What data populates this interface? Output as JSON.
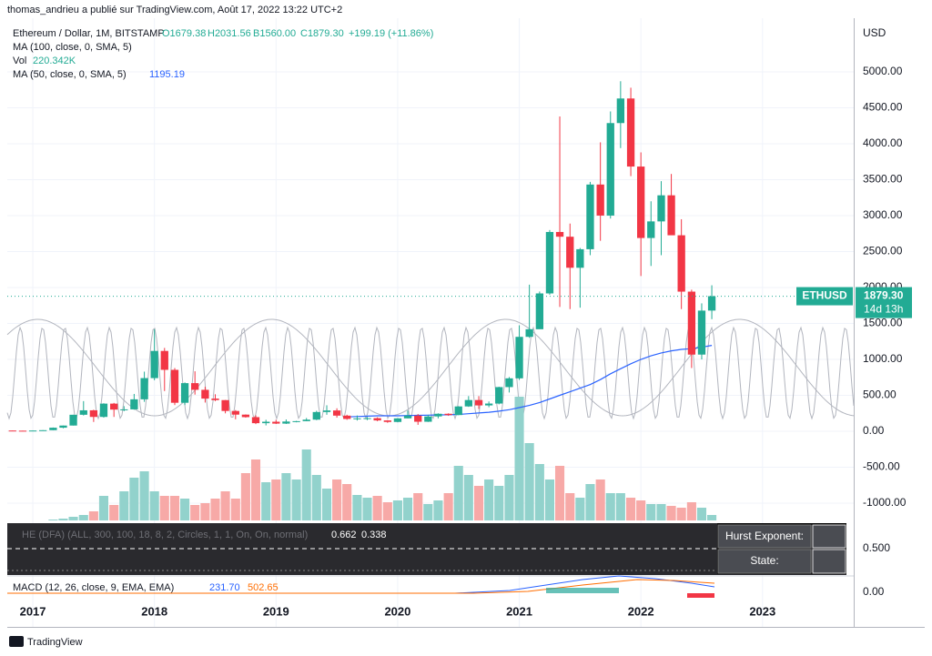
{
  "header": {
    "text": "thomas_andrieu a publié sur TradingView.com, Août 17, 2022 13:22 UTC+2"
  },
  "legend": {
    "symbol": "Ethereum / Dollar, 1M, BITSTAMP",
    "open": "O1679.38",
    "high": "H2031.56",
    "low": "B1560.00",
    "close": "C1879.30",
    "change": "+199.19 (+11.86%)",
    "ma100": "MA (100, close, 0, SMA, 5)",
    "vol": "Vol",
    "vol_value": "220.342K",
    "ma50": "MA (50, close, 0, SMA, 5)",
    "ma50_value": "1195.19"
  },
  "price_tag": {
    "symbol": "ETHUSD",
    "price": "1879.30",
    "countdown": "14d 13h"
  },
  "he_panel": {
    "title": "HE (DFA) (ALL, 300, 100, 18, 8, 2, Circles, 1, 1, On, On, normal)",
    "value1": "0.662",
    "value2": "0.338",
    "hurst_label": "Hurst Exponent:",
    "state_label": "State:",
    "axis_label": "0.500"
  },
  "macd_panel": {
    "title": "MACD (12, 26, close, 9, EMA, EMA)",
    "value1": "231.70",
    "value2": "502.65",
    "axis_label": "0.00"
  },
  "footer": {
    "brand": "TradingView"
  },
  "chart_data": {
    "type": "candlestick",
    "y_axis_label": "USD",
    "x": [
      2016.833,
      2016.917,
      2017.0,
      2017.083,
      2017.167,
      2017.25,
      2017.333,
      2017.417,
      2017.5,
      2017.583,
      2017.667,
      2017.75,
      2017.833,
      2017.917,
      2018.0,
      2018.083,
      2018.167,
      2018.25,
      2018.333,
      2018.417,
      2018.5,
      2018.583,
      2018.667,
      2018.75,
      2018.833,
      2018.917,
      2019.0,
      2019.083,
      2019.167,
      2019.25,
      2019.333,
      2019.417,
      2019.5,
      2019.583,
      2019.667,
      2019.75,
      2019.833,
      2019.917,
      2020.0,
      2020.083,
      2020.167,
      2020.25,
      2020.333,
      2020.417,
      2020.5,
      2020.583,
      2020.667,
      2020.75,
      2020.833,
      2020.917,
      2021.0,
      2021.083,
      2021.167,
      2021.25,
      2021.333,
      2021.417,
      2021.5,
      2021.583,
      2021.667,
      2021.75,
      2021.833,
      2021.917,
      2022.0,
      2022.083,
      2022.167,
      2022.25,
      2022.333,
      2022.417,
      2022.5,
      2022.583
    ],
    "candles": [
      [
        10.8,
        11.2,
        8.5,
        8.6
      ],
      [
        8.6,
        8.7,
        6.5,
        8
      ],
      [
        8,
        11,
        7.9,
        10.7
      ],
      [
        10.7,
        16,
        10.5,
        15.6
      ],
      [
        15.6,
        53,
        15.5,
        50
      ],
      [
        50,
        80,
        42,
        80
      ],
      [
        80,
        230,
        80,
        230
      ],
      [
        230,
        420,
        220,
        292
      ],
      [
        292,
        300,
        130,
        200
      ],
      [
        200,
        390,
        190,
        385
      ],
      [
        385,
        395,
        200,
        302
      ],
      [
        302,
        350,
        280,
        305
      ],
      [
        305,
        520,
        300,
        445
      ],
      [
        445,
        830,
        410,
        740
      ],
      [
        740,
        1420,
        710,
        1118
      ],
      [
        1118,
        1160,
        560,
        855
      ],
      [
        855,
        880,
        365,
        397
      ],
      [
        397,
        680,
        365,
        670
      ],
      [
        670,
        835,
        510,
        577
      ],
      [
        577,
        620,
        400,
        455
      ],
      [
        455,
        515,
        420,
        434
      ],
      [
        434,
        435,
        250,
        283
      ],
      [
        283,
        295,
        167,
        232
      ],
      [
        232,
        235,
        190,
        197
      ],
      [
        197,
        222,
        100,
        113
      ],
      [
        113,
        160,
        82,
        133
      ],
      [
        133,
        160,
        102,
        107
      ],
      [
        107,
        165,
        102,
        136
      ],
      [
        136,
        145,
        125,
        141
      ],
      [
        141,
        185,
        140,
        162
      ],
      [
        162,
        285,
        155,
        268
      ],
      [
        268,
        362,
        230,
        290
      ],
      [
        290,
        320,
        190,
        218
      ],
      [
        218,
        230,
        160,
        172
      ],
      [
        172,
        220,
        150,
        180
      ],
      [
        180,
        200,
        155,
        183
      ],
      [
        183,
        195,
        140,
        151
      ],
      [
        151,
        155,
        118,
        130
      ],
      [
        130,
        185,
        125,
        180
      ],
      [
        180,
        288,
        180,
        218
      ],
      [
        218,
        240,
        90,
        133
      ],
      [
        133,
        230,
        130,
        207
      ],
      [
        207,
        250,
        180,
        244
      ],
      [
        244,
        250,
        215,
        226
      ],
      [
        226,
        350,
        225,
        346
      ],
      [
        346,
        490,
        340,
        435
      ],
      [
        435,
        490,
        310,
        360
      ],
      [
        360,
        415,
        335,
        386
      ],
      [
        386,
        620,
        375,
        615
      ],
      [
        615,
        755,
        540,
        737
      ],
      [
        737,
        1475,
        715,
        1314
      ],
      [
        1314,
        2040,
        1300,
        1420
      ],
      [
        1420,
        1945,
        1430,
        1918
      ],
      [
        1918,
        2800,
        1900,
        2773
      ],
      [
        2773,
        4380,
        1730,
        2707
      ],
      [
        2707,
        2890,
        1700,
        2275
      ],
      [
        2275,
        2550,
        1720,
        2533
      ],
      [
        2533,
        3470,
        2450,
        3433
      ],
      [
        3433,
        4020,
        2650,
        3001
      ],
      [
        3001,
        4450,
        2960,
        4288
      ],
      [
        4288,
        4870,
        3940,
        4630
      ],
      [
        4630,
        4780,
        3550,
        3683
      ],
      [
        3683,
        3880,
        2160,
        2689
      ],
      [
        2689,
        3200,
        2300,
        2920
      ],
      [
        2920,
        3480,
        2450,
        3283
      ],
      [
        3283,
        3580,
        2780,
        2727
      ],
      [
        2727,
        2950,
        1700,
        1943
      ],
      [
        1943,
        1970,
        880,
        1067
      ],
      [
        1067,
        1780,
        1000,
        1679
      ],
      [
        1679.38,
        2031.56,
        1560,
        1879.3
      ]
    ],
    "volume": [
      0,
      0,
      0,
      0,
      5,
      10,
      20,
      30,
      50,
      135,
      85,
      160,
      235,
      270,
      160,
      135,
      135,
      120,
      85,
      95,
      120,
      160,
      120,
      260,
      335,
      210,
      225,
      260,
      225,
      390,
      250,
      175,
      225,
      200,
      140,
      125,
      135,
      100,
      110,
      125,
      150,
      90,
      110,
      150,
      300,
      250,
      190,
      225,
      190,
      250,
      680,
      425,
      310,
      225,
      300,
      150,
      125,
      200,
      225,
      150,
      150,
      125,
      110,
      90,
      90,
      80,
      70,
      100,
      70,
      30
    ],
    "vlim": [
      0,
      2760
    ],
    "ma50": [
      null,
      null,
      null,
      null,
      null,
      null,
      null,
      null,
      null,
      null,
      null,
      null,
      null,
      null,
      null,
      null,
      null,
      null,
      null,
      null,
      null,
      null,
      null,
      null,
      null,
      null,
      null,
      null,
      null,
      null,
      null,
      null,
      null,
      200,
      205,
      210,
      215,
      215,
      215,
      220,
      222,
      225,
      228,
      230,
      235,
      245,
      255,
      265,
      280,
      300,
      330,
      360,
      400,
      450,
      500,
      550,
      600,
      650,
      720,
      800,
      870,
      940,
      1000,
      1050,
      1090,
      1120,
      1140,
      1150,
      1170,
      1195.19
    ],
    "up_color": "#22ab94",
    "down_color": "#f23645",
    "up_volume_color": "#92d2cc",
    "down_volume_color": "#f7a9a7",
    "ma_color": "#2962ff",
    "xlim": [
      2016.79,
      2023.75
    ],
    "xticks": [
      2017,
      2018,
      2019,
      2020,
      2021,
      2022,
      2023
    ],
    "ylim": [
      -1240,
      5747
    ],
    "yticks": [
      {
        "value": -1000,
        "label": "-1000.00"
      },
      {
        "value": -500,
        "label": "-500.00"
      },
      {
        "value": 0,
        "label": "0.00"
      },
      {
        "value": 500,
        "label": "500.00"
      },
      {
        "value": 1000,
        "label": "1000.00"
      },
      {
        "value": 1500,
        "label": "1500.00"
      },
      {
        "value": 2000,
        "label": "2000.00"
      },
      {
        "value": 2500,
        "label": "2500.00"
      },
      {
        "value": 3000,
        "label": "3000.00"
      },
      {
        "value": 3500,
        "label": "3500.00"
      },
      {
        "value": 4000,
        "label": "4000.00"
      },
      {
        "value": 4500,
        "label": "4500.00"
      },
      {
        "value": 5000,
        "label": "5000.00"
      }
    ],
    "grid": true
  }
}
